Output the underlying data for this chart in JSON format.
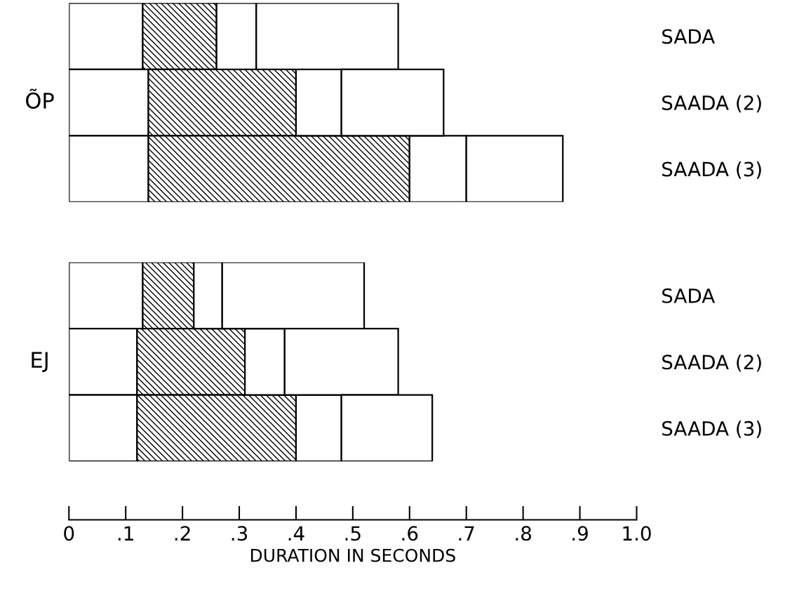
{
  "chart_data": [
    {
      "type": "bar",
      "orientation": "horizontal",
      "stacked": true,
      "ylabel": "ÕP",
      "categories": [
        "SADA",
        "SAADA (2)",
        "SAADA (3)"
      ],
      "series": [
        {
          "color": "#ffffff",
          "values": [
            0.13,
            0.14,
            0.14
          ]
        },
        {
          "color": "#000000",
          "values": [
            0.13,
            0.26,
            0.46
          ]
        },
        {
          "color": "#ffffff",
          "values": [
            0.07,
            0.08,
            0.1
          ]
        },
        {
          "color": "#ffffff",
          "values": [
            0.25,
            0.18,
            0.17
          ]
        }
      ],
      "xlim": [
        0,
        1.0
      ],
      "tick_labels": "y",
      "grid": false,
      "legend": false
    },
    {
      "type": "bar",
      "orientation": "horizontal",
      "stacked": true,
      "ylabel": "EJ",
      "xlabel": "DURATION IN SECONDS",
      "categories": [
        "SADA",
        "SAADA (2)",
        "SAADA (3)"
      ],
      "series": [
        {
          "color": "#ffffff",
          "values": [
            0.13,
            0.12,
            0.12
          ]
        },
        {
          "color": "#000000",
          "values": [
            0.09,
            0.19,
            0.28
          ]
        },
        {
          "color": "#ffffff",
          "values": [
            0.05,
            0.07,
            0.08
          ]
        },
        {
          "color": "#ffffff",
          "values": [
            0.25,
            0.2,
            0.16
          ]
        }
      ],
      "xlim": [
        0,
        1.0
      ],
      "xticks": [
        0,
        {
          "value": 0.1,
          "label": ".1"
        },
        {
          "value": 0.2,
          "label": ".2"
        },
        {
          "value": 0.3,
          "label": ".3"
        },
        {
          "value": 0.4,
          "label": ".4"
        },
        {
          "value": 0.5,
          "label": ".5"
        },
        {
          "value": 0.6,
          "label": ".6"
        },
        {
          "value": 0.7,
          "label": ".7"
        },
        {
          "value": 0.8,
          "label": ".8"
        },
        {
          "value": 0.9,
          "label": ".9"
        },
        {
          "value": 1.0,
          "label": "1.0"
        }
      ],
      "grid": false,
      "legend": false
    }
  ]
}
